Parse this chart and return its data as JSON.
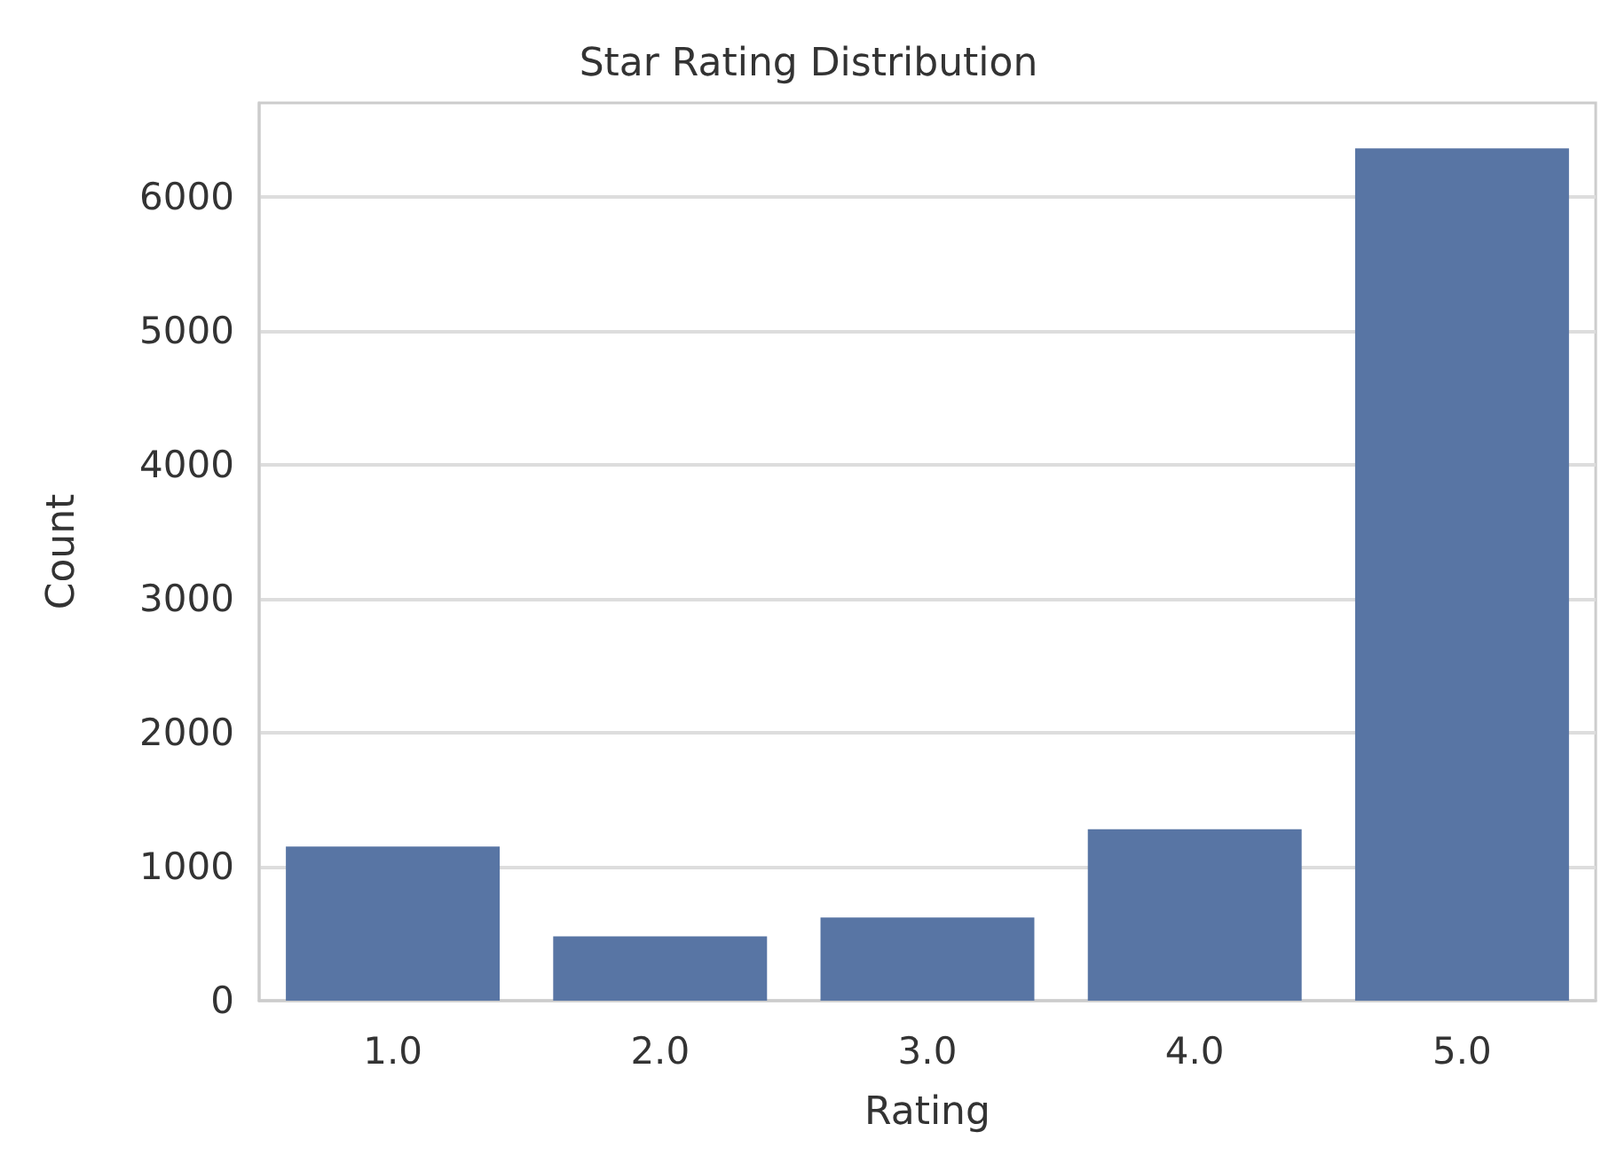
{
  "chart_data": {
    "type": "bar",
    "title": "Star Rating Distribution",
    "xlabel": "Rating",
    "ylabel": "Count",
    "categories": [
      "1.0",
      "2.0",
      "3.0",
      "4.0",
      "5.0"
    ],
    "values": [
      1150,
      480,
      620,
      1280,
      6360
    ],
    "color": "#5875a4",
    "ylim": [
      0,
      6700
    ],
    "yticks": [
      0,
      1000,
      2000,
      3000,
      4000,
      5000,
      6000
    ],
    "grid": "y"
  }
}
